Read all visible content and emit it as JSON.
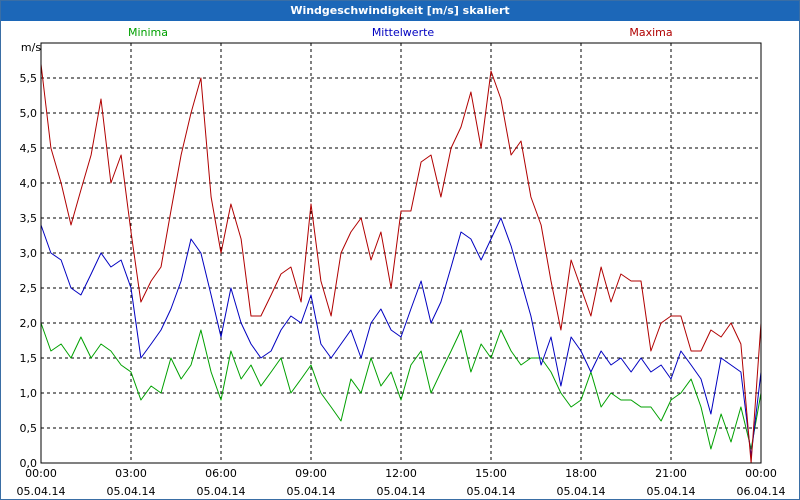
{
  "window": {
    "title": "Windgeschwindigkeit [m/s] skaliert"
  },
  "chart_data": {
    "type": "line",
    "title": "Windgeschwindigkeit [m/s] skaliert",
    "ylabel": "m/s",
    "xlabel": "",
    "ylim": [
      0,
      6
    ],
    "grid": true,
    "yticks": [
      0.0,
      0.5,
      1.0,
      1.5,
      2.0,
      2.5,
      3.0,
      3.5,
      4.0,
      4.5,
      5.0,
      5.5
    ],
    "ytick_labels": [
      "0,0",
      "0,5",
      "1,0",
      "1,5",
      "2,0",
      "2,5",
      "3,0",
      "3,5",
      "4,0",
      "4,5",
      "5,0",
      "5,5"
    ],
    "xlim": [
      0,
      24
    ],
    "xticks": [
      0,
      3,
      6,
      9,
      12,
      15,
      18,
      21,
      24
    ],
    "xtick_time_labels": [
      "00:00",
      "03:00",
      "06:00",
      "09:00",
      "12:00",
      "15:00",
      "18:00",
      "21:00",
      "00:00"
    ],
    "xtick_date_labels": [
      "05.04.14",
      "05.04.14",
      "05.04.14",
      "05.04.14",
      "05.04.14",
      "05.04.14",
      "05.04.14",
      "05.04.14",
      "06.04.14"
    ],
    "legend_placement": "top",
    "series": [
      {
        "name": "Minima",
        "color": "#00a000",
        "x": [
          0,
          0.33,
          0.67,
          1,
          1.33,
          1.67,
          2,
          2.33,
          2.67,
          3,
          3.33,
          3.67,
          4,
          4.33,
          4.67,
          5,
          5.33,
          5.67,
          6,
          6.33,
          6.67,
          7,
          7.33,
          7.67,
          8,
          8.33,
          8.67,
          9,
          9.33,
          9.67,
          10,
          10.33,
          10.67,
          11,
          11.33,
          11.67,
          12,
          12.33,
          12.67,
          13,
          13.33,
          13.67,
          14,
          14.33,
          14.67,
          15,
          15.33,
          15.67,
          16,
          16.33,
          16.67,
          17,
          17.33,
          17.67,
          18,
          18.33,
          18.67,
          19,
          19.33,
          19.67,
          20,
          20.33,
          20.67,
          21,
          21.33,
          21.67,
          22,
          22.33,
          22.67,
          23,
          23.33,
          23.67,
          24
        ],
        "values": [
          2.0,
          1.6,
          1.7,
          1.5,
          1.8,
          1.5,
          1.7,
          1.6,
          1.4,
          1.3,
          0.9,
          1.1,
          1.0,
          1.5,
          1.2,
          1.4,
          1.9,
          1.3,
          0.9,
          1.6,
          1.2,
          1.4,
          1.1,
          1.3,
          1.5,
          1.0,
          1.2,
          1.4,
          1.0,
          0.8,
          0.6,
          1.2,
          1.0,
          1.5,
          1.1,
          1.3,
          0.9,
          1.4,
          1.6,
          1.0,
          1.3,
          1.6,
          1.9,
          1.3,
          1.7,
          1.5,
          1.9,
          1.6,
          1.4,
          1.5,
          1.5,
          1.3,
          1.0,
          0.8,
          0.9,
          1.3,
          0.8,
          1.0,
          0.9,
          0.9,
          0.8,
          0.8,
          0.6,
          0.9,
          1.0,
          1.2,
          0.8,
          0.2,
          0.7,
          0.3,
          0.8,
          0.2,
          1.0
        ]
      },
      {
        "name": "Mittelwerte",
        "color": "#0000c0",
        "x": [
          0,
          0.33,
          0.67,
          1,
          1.33,
          1.67,
          2,
          2.33,
          2.67,
          3,
          3.33,
          3.67,
          4,
          4.33,
          4.67,
          5,
          5.33,
          5.67,
          6,
          6.33,
          6.67,
          7,
          7.33,
          7.67,
          8,
          8.33,
          8.67,
          9,
          9.33,
          9.67,
          10,
          10.33,
          10.67,
          11,
          11.33,
          11.67,
          12,
          12.33,
          12.67,
          13,
          13.33,
          13.67,
          14,
          14.33,
          14.67,
          15,
          15.33,
          15.67,
          16,
          16.33,
          16.67,
          17,
          17.33,
          17.67,
          18,
          18.33,
          18.67,
          19,
          19.33,
          19.67,
          20,
          20.33,
          20.67,
          21,
          21.33,
          21.67,
          22,
          22.33,
          22.67,
          23,
          23.33,
          23.67,
          24
        ],
        "values": [
          3.4,
          3.0,
          2.9,
          2.5,
          2.4,
          2.7,
          3.0,
          2.8,
          2.9,
          2.5,
          1.5,
          1.7,
          1.9,
          2.2,
          2.6,
          3.2,
          3.0,
          2.4,
          1.8,
          2.5,
          2.0,
          1.7,
          1.5,
          1.6,
          1.9,
          2.1,
          2.0,
          2.4,
          1.7,
          1.5,
          1.7,
          1.9,
          1.5,
          2.0,
          2.2,
          1.9,
          1.8,
          2.2,
          2.6,
          2.0,
          2.3,
          2.8,
          3.3,
          3.2,
          2.9,
          3.2,
          3.5,
          3.1,
          2.6,
          2.1,
          1.4,
          1.8,
          1.1,
          1.8,
          1.6,
          1.3,
          1.6,
          1.4,
          1.5,
          1.3,
          1.5,
          1.3,
          1.4,
          1.2,
          1.6,
          1.4,
          1.2,
          0.7,
          1.5,
          1.4,
          1.3,
          0.1,
          1.3
        ]
      },
      {
        "name": "Maxima",
        "color": "#b00000",
        "x": [
          0,
          0.33,
          0.67,
          1,
          1.33,
          1.67,
          2,
          2.33,
          2.67,
          3,
          3.33,
          3.67,
          4,
          4.33,
          4.67,
          5,
          5.33,
          5.67,
          6,
          6.33,
          6.67,
          7,
          7.33,
          7.67,
          8,
          8.33,
          8.67,
          9,
          9.33,
          9.67,
          10,
          10.33,
          10.67,
          11,
          11.33,
          11.67,
          12,
          12.33,
          12.67,
          13,
          13.33,
          13.67,
          14,
          14.33,
          14.67,
          15,
          15.33,
          15.67,
          16,
          16.33,
          16.67,
          17,
          17.33,
          17.67,
          18,
          18.33,
          18.67,
          19,
          19.33,
          19.67,
          20,
          20.33,
          20.67,
          21,
          21.33,
          21.67,
          22,
          22.33,
          22.67,
          23,
          23.33,
          23.67,
          24
        ],
        "values": [
          5.7,
          4.5,
          4.0,
          3.4,
          3.9,
          4.4,
          5.2,
          4.0,
          4.4,
          3.3,
          2.3,
          2.6,
          2.8,
          3.6,
          4.4,
          5.0,
          5.5,
          3.8,
          3.0,
          3.7,
          3.2,
          2.1,
          2.1,
          2.4,
          2.7,
          2.8,
          2.3,
          3.7,
          2.6,
          2.1,
          3.0,
          3.3,
          3.5,
          2.9,
          3.3,
          2.5,
          3.6,
          3.6,
          4.3,
          4.4,
          3.8,
          4.5,
          4.8,
          5.3,
          4.5,
          5.6,
          5.2,
          4.4,
          4.6,
          3.8,
          3.4,
          2.6,
          1.9,
          2.9,
          2.5,
          2.1,
          2.8,
          2.3,
          2.7,
          2.6,
          2.6,
          1.6,
          2.0,
          2.1,
          2.1,
          1.6,
          1.6,
          1.9,
          1.8,
          2.0,
          1.7,
          0.0,
          2.0
        ]
      }
    ]
  }
}
